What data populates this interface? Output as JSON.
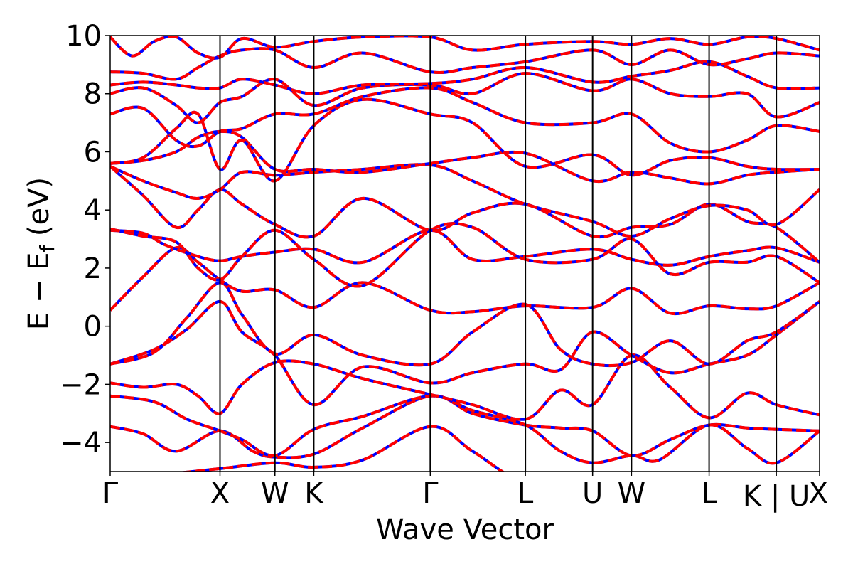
{
  "chart_data": {
    "type": "line",
    "xlabel": "Wave Vector",
    "ylabel": "E − E_f (eV)",
    "ylabel_main": "E − E",
    "ylabel_sub": "f",
    "ylabel_unit": " (eV)",
    "ylim": [
      -5,
      10
    ],
    "yticks": [
      -4,
      -2,
      0,
      2,
      4,
      6,
      8,
      10
    ],
    "ytick_labels": [
      "−4",
      "−2",
      "0",
      "2",
      "4",
      "6",
      "8",
      "10"
    ],
    "xlim": [
      0,
      6.46
    ],
    "kpoints": [
      {
        "label": "Γ",
        "x": 0.0
      },
      {
        "label": "X",
        "x": 1.0
      },
      {
        "label": "W",
        "x": 1.5
      },
      {
        "label": "K",
        "x": 1.854
      },
      {
        "label": "Γ",
        "x": 2.915
      },
      {
        "label": "L",
        "x": 3.781
      },
      {
        "label": "U",
        "x": 4.393
      },
      {
        "label": "W",
        "x": 4.747
      },
      {
        "label": "L",
        "x": 5.454
      },
      {
        "label": "K | U",
        "x": 6.066
      },
      {
        "label": "X",
        "x": 6.46
      }
    ],
    "grid": false,
    "legend": "none",
    "series_styles": {
      "base_color": "#0000ff",
      "overlay_color": "#ff0000",
      "overlay_dash": "dashed"
    },
    "bands": [
      [
        [
          0.0,
          -5.3
        ],
        [
          0.5,
          -5.1
        ],
        [
          1.0,
          -4.9
        ],
        [
          1.5,
          -4.7
        ],
        [
          1.854,
          -4.85
        ],
        [
          2.3,
          -4.6
        ],
        [
          2.915,
          -3.45
        ],
        [
          3.3,
          -4.3
        ],
        [
          3.781,
          -5.4
        ],
        [
          4.393,
          -5.6
        ],
        [
          4.747,
          -5.3
        ],
        [
          5.454,
          -5.4
        ],
        [
          6.066,
          -5.5
        ],
        [
          6.46,
          -5.6
        ]
      ],
      [
        [
          0.0,
          -3.45
        ],
        [
          0.3,
          -3.7
        ],
        [
          0.6,
          -4.3
        ],
        [
          1.0,
          -3.6
        ],
        [
          1.3,
          -4.3
        ],
        [
          1.5,
          -4.5
        ],
        [
          1.854,
          -4.4
        ],
        [
          2.3,
          -3.5
        ],
        [
          2.915,
          -2.4
        ],
        [
          3.3,
          -3.0
        ],
        [
          3.781,
          -3.4
        ],
        [
          4.1,
          -3.5
        ],
        [
          4.393,
          -3.6
        ],
        [
          4.747,
          -4.45
        ],
        [
          5.1,
          -3.9
        ],
        [
          5.454,
          -3.4
        ],
        [
          5.8,
          -3.5
        ],
        [
          6.066,
          -3.55
        ],
        [
          6.46,
          -3.6
        ]
      ],
      [
        [
          0.0,
          -2.4
        ],
        [
          0.4,
          -2.6
        ],
        [
          0.7,
          -3.2
        ],
        [
          1.0,
          -3.6
        ],
        [
          1.2,
          -3.9
        ],
        [
          1.5,
          -4.45
        ],
        [
          1.854,
          -3.55
        ],
        [
          2.3,
          -3.1
        ],
        [
          2.915,
          -2.4
        ],
        [
          3.3,
          -2.9
        ],
        [
          3.781,
          -3.4
        ],
        [
          4.1,
          -4.3
        ],
        [
          4.393,
          -4.7
        ],
        [
          4.747,
          -4.45
        ],
        [
          5.0,
          -4.6
        ],
        [
          5.454,
          -3.4
        ],
        [
          5.8,
          -4.2
        ],
        [
          6.066,
          -4.7
        ],
        [
          6.46,
          -3.6
        ]
      ],
      [
        [
          0.0,
          -1.95
        ],
        [
          0.3,
          -2.1
        ],
        [
          0.6,
          -2.0
        ],
        [
          0.8,
          -2.4
        ],
        [
          1.0,
          -3.0
        ],
        [
          1.2,
          -2.0
        ],
        [
          1.5,
          -1.25
        ],
        [
          1.854,
          -1.3
        ],
        [
          2.3,
          -1.8
        ],
        [
          2.915,
          -2.35
        ],
        [
          3.3,
          -2.7
        ],
        [
          3.781,
          -3.2
        ],
        [
          4.1,
          -2.2
        ],
        [
          4.393,
          -2.7
        ],
        [
          4.747,
          -1.0
        ],
        [
          5.1,
          -2.1
        ],
        [
          5.454,
          -3.15
        ],
        [
          5.8,
          -2.3
        ],
        [
          6.066,
          -2.7
        ],
        [
          6.46,
          -3.05
        ]
      ],
      [
        [
          0.0,
          -1.3
        ],
        [
          0.4,
          -0.8
        ],
        [
          0.7,
          -0.1
        ],
        [
          1.0,
          0.85
        ],
        [
          1.2,
          -0.2
        ],
        [
          1.5,
          -1.0
        ],
        [
          1.854,
          -2.7
        ],
        [
          2.3,
          -1.4
        ],
        [
          2.915,
          -1.95
        ],
        [
          3.3,
          -1.6
        ],
        [
          3.781,
          -1.3
        ],
        [
          4.1,
          -1.5
        ],
        [
          4.393,
          -0.2
        ],
        [
          4.747,
          -1.0
        ],
        [
          5.1,
          -1.6
        ],
        [
          5.454,
          -1.3
        ],
        [
          5.8,
          -1.0
        ],
        [
          6.066,
          -0.3
        ],
        [
          6.46,
          0.85
        ]
      ],
      [
        [
          0.0,
          -1.3
        ],
        [
          0.4,
          -0.9
        ],
        [
          0.7,
          0.3
        ],
        [
          1.0,
          1.5
        ],
        [
          1.2,
          0.4
        ],
        [
          1.5,
          -0.95
        ],
        [
          1.854,
          -0.3
        ],
        [
          2.3,
          -1.0
        ],
        [
          2.915,
          -1.3
        ],
        [
          3.3,
          -0.2
        ],
        [
          3.781,
          0.75
        ],
        [
          4.1,
          -0.8
        ],
        [
          4.393,
          -1.3
        ],
        [
          4.747,
          -1.25
        ],
        [
          5.1,
          -0.5
        ],
        [
          5.454,
          -1.3
        ],
        [
          5.8,
          -0.5
        ],
        [
          6.066,
          -0.2
        ],
        [
          6.46,
          0.85
        ]
      ],
      [
        [
          0.0,
          0.55
        ],
        [
          0.3,
          1.7
        ],
        [
          0.6,
          2.7
        ],
        [
          0.8,
          2.2
        ],
        [
          1.0,
          1.6
        ],
        [
          1.2,
          1.2
        ],
        [
          1.5,
          1.25
        ],
        [
          1.854,
          0.65
        ],
        [
          2.3,
          1.5
        ],
        [
          2.915,
          0.55
        ],
        [
          3.3,
          0.5
        ],
        [
          3.781,
          0.7
        ],
        [
          4.393,
          0.65
        ],
        [
          4.747,
          1.3
        ],
        [
          5.1,
          0.45
        ],
        [
          5.454,
          0.7
        ],
        [
          5.8,
          0.6
        ],
        [
          6.066,
          0.7
        ],
        [
          6.46,
          1.5
        ]
      ],
      [
        [
          0.0,
          3.3
        ],
        [
          0.3,
          3.2
        ],
        [
          0.5,
          2.8
        ],
        [
          0.8,
          2.4
        ],
        [
          1.0,
          2.25
        ],
        [
          1.2,
          2.4
        ],
        [
          1.5,
          2.55
        ],
        [
          1.854,
          2.65
        ],
        [
          2.3,
          2.2
        ],
        [
          2.915,
          3.3
        ],
        [
          3.3,
          2.3
        ],
        [
          3.781,
          2.4
        ],
        [
          4.393,
          2.65
        ],
        [
          4.747,
          2.3
        ],
        [
          5.1,
          2.1
        ],
        [
          5.454,
          2.4
        ],
        [
          5.8,
          2.6
        ],
        [
          6.066,
          2.7
        ],
        [
          6.46,
          2.2
        ]
      ],
      [
        [
          0.0,
          3.35
        ],
        [
          0.3,
          3.1
        ],
        [
          0.6,
          2.9
        ],
        [
          0.8,
          2.0
        ],
        [
          1.0,
          1.6
        ],
        [
          1.2,
          2.4
        ],
        [
          1.5,
          3.3
        ],
        [
          1.854,
          2.3
        ],
        [
          2.3,
          1.4
        ],
        [
          2.915,
          3.3
        ],
        [
          3.3,
          3.4
        ],
        [
          3.781,
          2.3
        ],
        [
          4.393,
          2.3
        ],
        [
          4.747,
          3.0
        ],
        [
          5.1,
          1.8
        ],
        [
          5.454,
          2.2
        ],
        [
          5.8,
          2.2
        ],
        [
          6.066,
          2.4
        ],
        [
          6.46,
          1.5
        ]
      ],
      [
        [
          0.0,
          5.5
        ],
        [
          0.3,
          4.5
        ],
        [
          0.6,
          3.4
        ],
        [
          0.8,
          4.0
        ],
        [
          1.0,
          4.7
        ],
        [
          1.2,
          4.2
        ],
        [
          1.5,
          3.5
        ],
        [
          1.854,
          3.1
        ],
        [
          2.3,
          4.4
        ],
        [
          2.915,
          3.3
        ],
        [
          3.3,
          3.9
        ],
        [
          3.781,
          4.2
        ],
        [
          4.393,
          3.1
        ],
        [
          4.747,
          3.4
        ],
        [
          5.1,
          3.5
        ],
        [
          5.454,
          4.2
        ],
        [
          5.8,
          3.6
        ],
        [
          6.066,
          3.4
        ],
        [
          6.46,
          2.2
        ]
      ],
      [
        [
          0.0,
          5.5
        ],
        [
          0.3,
          5.0
        ],
        [
          0.6,
          4.6
        ],
        [
          0.8,
          4.4
        ],
        [
          1.0,
          4.7
        ],
        [
          1.2,
          5.3
        ],
        [
          1.5,
          5.2
        ],
        [
          1.854,
          5.3
        ],
        [
          2.3,
          5.4
        ],
        [
          2.915,
          5.55
        ],
        [
          3.3,
          5.0
        ],
        [
          3.781,
          4.2
        ],
        [
          4.393,
          3.6
        ],
        [
          4.747,
          3.1
        ],
        [
          5.1,
          3.7
        ],
        [
          5.454,
          4.15
        ],
        [
          5.8,
          4.0
        ],
        [
          6.066,
          3.5
        ],
        [
          6.46,
          4.7
        ]
      ],
      [
        [
          0.0,
          5.6
        ],
        [
          0.3,
          5.7
        ],
        [
          0.6,
          6.0
        ],
        [
          0.8,
          6.5
        ],
        [
          1.0,
          6.7
        ],
        [
          1.2,
          6.5
        ],
        [
          1.5,
          5.4
        ],
        [
          1.854,
          5.4
        ],
        [
          2.3,
          5.3
        ],
        [
          2.915,
          5.6
        ],
        [
          3.3,
          5.8
        ],
        [
          3.781,
          5.95
        ],
        [
          4.393,
          5.0
        ],
        [
          4.747,
          5.3
        ],
        [
          5.1,
          5.1
        ],
        [
          5.454,
          4.9
        ],
        [
          5.8,
          5.2
        ],
        [
          6.066,
          5.3
        ],
        [
          6.46,
          5.4
        ]
      ],
      [
        [
          0.0,
          5.6
        ],
        [
          0.3,
          5.8
        ],
        [
          0.6,
          6.8
        ],
        [
          0.8,
          7.3
        ],
        [
          1.0,
          5.4
        ],
        [
          1.2,
          6.4
        ],
        [
          1.5,
          5.0
        ],
        [
          1.854,
          6.9
        ],
        [
          2.3,
          7.8
        ],
        [
          2.915,
          7.3
        ],
        [
          3.3,
          7.0
        ],
        [
          3.781,
          5.5
        ],
        [
          4.393,
          5.9
        ],
        [
          4.747,
          5.2
        ],
        [
          5.1,
          5.7
        ],
        [
          5.454,
          5.8
        ],
        [
          5.8,
          5.5
        ],
        [
          6.066,
          5.4
        ],
        [
          6.46,
          5.4
        ]
      ],
      [
        [
          0.0,
          7.3
        ],
        [
          0.3,
          7.5
        ],
        [
          0.6,
          6.4
        ],
        [
          0.8,
          6.2
        ],
        [
          1.0,
          6.7
        ],
        [
          1.2,
          6.8
        ],
        [
          1.5,
          7.3
        ],
        [
          1.854,
          7.3
        ],
        [
          2.3,
          7.9
        ],
        [
          2.915,
          8.2
        ],
        [
          3.3,
          7.7
        ],
        [
          3.781,
          7.0
        ],
        [
          4.393,
          7.0
        ],
        [
          4.747,
          7.3
        ],
        [
          5.1,
          6.3
        ],
        [
          5.454,
          6.0
        ],
        [
          5.8,
          6.4
        ],
        [
          6.066,
          6.9
        ],
        [
          6.46,
          6.7
        ]
      ],
      [
        [
          0.0,
          8.0
        ],
        [
          0.3,
          8.2
        ],
        [
          0.6,
          7.6
        ],
        [
          0.8,
          7.0
        ],
        [
          1.0,
          7.7
        ],
        [
          1.2,
          7.9
        ],
        [
          1.5,
          8.5
        ],
        [
          1.854,
          7.6
        ],
        [
          2.3,
          8.2
        ],
        [
          2.915,
          8.3
        ],
        [
          3.3,
          8.0
        ],
        [
          3.781,
          8.7
        ],
        [
          4.393,
          8.1
        ],
        [
          4.747,
          8.5
        ],
        [
          5.1,
          8.0
        ],
        [
          5.454,
          7.9
        ],
        [
          5.8,
          8.0
        ],
        [
          6.066,
          7.2
        ],
        [
          6.46,
          7.7
        ]
      ],
      [
        [
          0.0,
          8.3
        ],
        [
          0.3,
          8.4
        ],
        [
          0.6,
          8.3
        ],
        [
          0.8,
          8.2
        ],
        [
          1.0,
          8.2
        ],
        [
          1.2,
          8.5
        ],
        [
          1.5,
          8.3
        ],
        [
          1.854,
          8.0
        ],
        [
          2.3,
          8.3
        ],
        [
          2.915,
          8.35
        ],
        [
          3.3,
          8.5
        ],
        [
          3.781,
          8.9
        ],
        [
          4.393,
          8.4
        ],
        [
          4.747,
          8.6
        ],
        [
          5.1,
          8.8
        ],
        [
          5.454,
          9.1
        ],
        [
          5.8,
          8.6
        ],
        [
          6.066,
          8.2
        ],
        [
          6.46,
          8.2
        ]
      ],
      [
        [
          0.0,
          8.75
        ],
        [
          0.3,
          8.7
        ],
        [
          0.6,
          8.5
        ],
        [
          0.8,
          8.9
        ],
        [
          1.0,
          9.3
        ],
        [
          1.2,
          9.5
        ],
        [
          1.5,
          9.5
        ],
        [
          1.854,
          8.9
        ],
        [
          2.3,
          9.4
        ],
        [
          2.915,
          8.75
        ],
        [
          3.3,
          8.9
        ],
        [
          3.781,
          9.1
        ],
        [
          4.393,
          9.5
        ],
        [
          4.747,
          9.0
        ],
        [
          5.1,
          9.5
        ],
        [
          5.454,
          9.0
        ],
        [
          5.8,
          9.2
        ],
        [
          6.066,
          9.4
        ],
        [
          6.46,
          9.3
        ]
      ],
      [
        [
          0.0,
          9.95
        ],
        [
          0.2,
          9.3
        ],
        [
          0.4,
          9.8
        ],
        [
          0.6,
          9.95
        ],
        [
          0.8,
          9.4
        ],
        [
          1.0,
          9.25
        ],
        [
          1.2,
          9.9
        ],
        [
          1.5,
          9.6
        ],
        [
          1.854,
          9.8
        ],
        [
          2.3,
          9.95
        ],
        [
          2.915,
          9.95
        ],
        [
          3.3,
          9.5
        ],
        [
          3.781,
          9.7
        ],
        [
          4.393,
          9.8
        ],
        [
          4.747,
          9.7
        ],
        [
          5.1,
          9.9
        ],
        [
          5.454,
          9.7
        ],
        [
          5.8,
          9.95
        ],
        [
          6.066,
          9.9
        ],
        [
          6.46,
          9.5
        ]
      ]
    ]
  }
}
